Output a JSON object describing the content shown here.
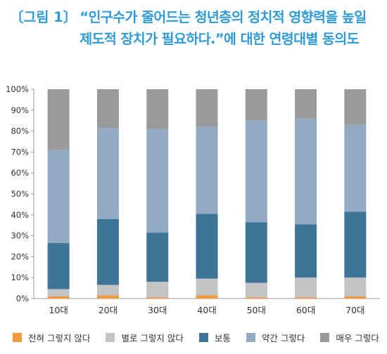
{
  "figure": {
    "label": "〔그림 1〕",
    "title": "“인구수가 줄어드는 청년층의 정치적 영향력을 높일 제도적 장치가 필요하다.”에 대한 연령대별 동의도"
  },
  "colors": {
    "title": "#2e9ad6",
    "series": [
      "#f59a3a",
      "#c2c4c6",
      "#3e7597",
      "#92abc2",
      "#999a9c"
    ]
  },
  "chart_data": {
    "type": "bar",
    "stacked": true,
    "percent": true,
    "categories": [
      "10대",
      "20대",
      "30대",
      "40대",
      "50대",
      "60대",
      "70대"
    ],
    "series": [
      {
        "name": "전혀 그렇지 않다",
        "values": [
          1.0,
          1.5,
          0.5,
          1.5,
          0.5,
          0.5,
          1.0
        ]
      },
      {
        "name": "별로 그렇지 않다",
        "values": [
          3.5,
          5.0,
          7.5,
          8.0,
          7.0,
          9.5,
          9.0
        ]
      },
      {
        "name": "보통",
        "values": [
          22.0,
          31.5,
          23.5,
          31.0,
          29.0,
          25.5,
          31.5
        ]
      },
      {
        "name": "약간 그렇다",
        "values": [
          44.5,
          43.5,
          49.5,
          41.5,
          48.5,
          50.5,
          41.5
        ]
      },
      {
        "name": "매우 그렇다",
        "values": [
          29.0,
          18.5,
          19.0,
          18.0,
          15.0,
          14.0,
          17.0
        ]
      }
    ],
    "y_ticks": [
      "0%",
      "10%",
      "20%",
      "30%",
      "40%",
      "50%",
      "60%",
      "70%",
      "80%",
      "90%",
      "100%"
    ],
    "ylim": [
      0,
      100
    ],
    "grid": false,
    "legend_position": "bottom"
  }
}
